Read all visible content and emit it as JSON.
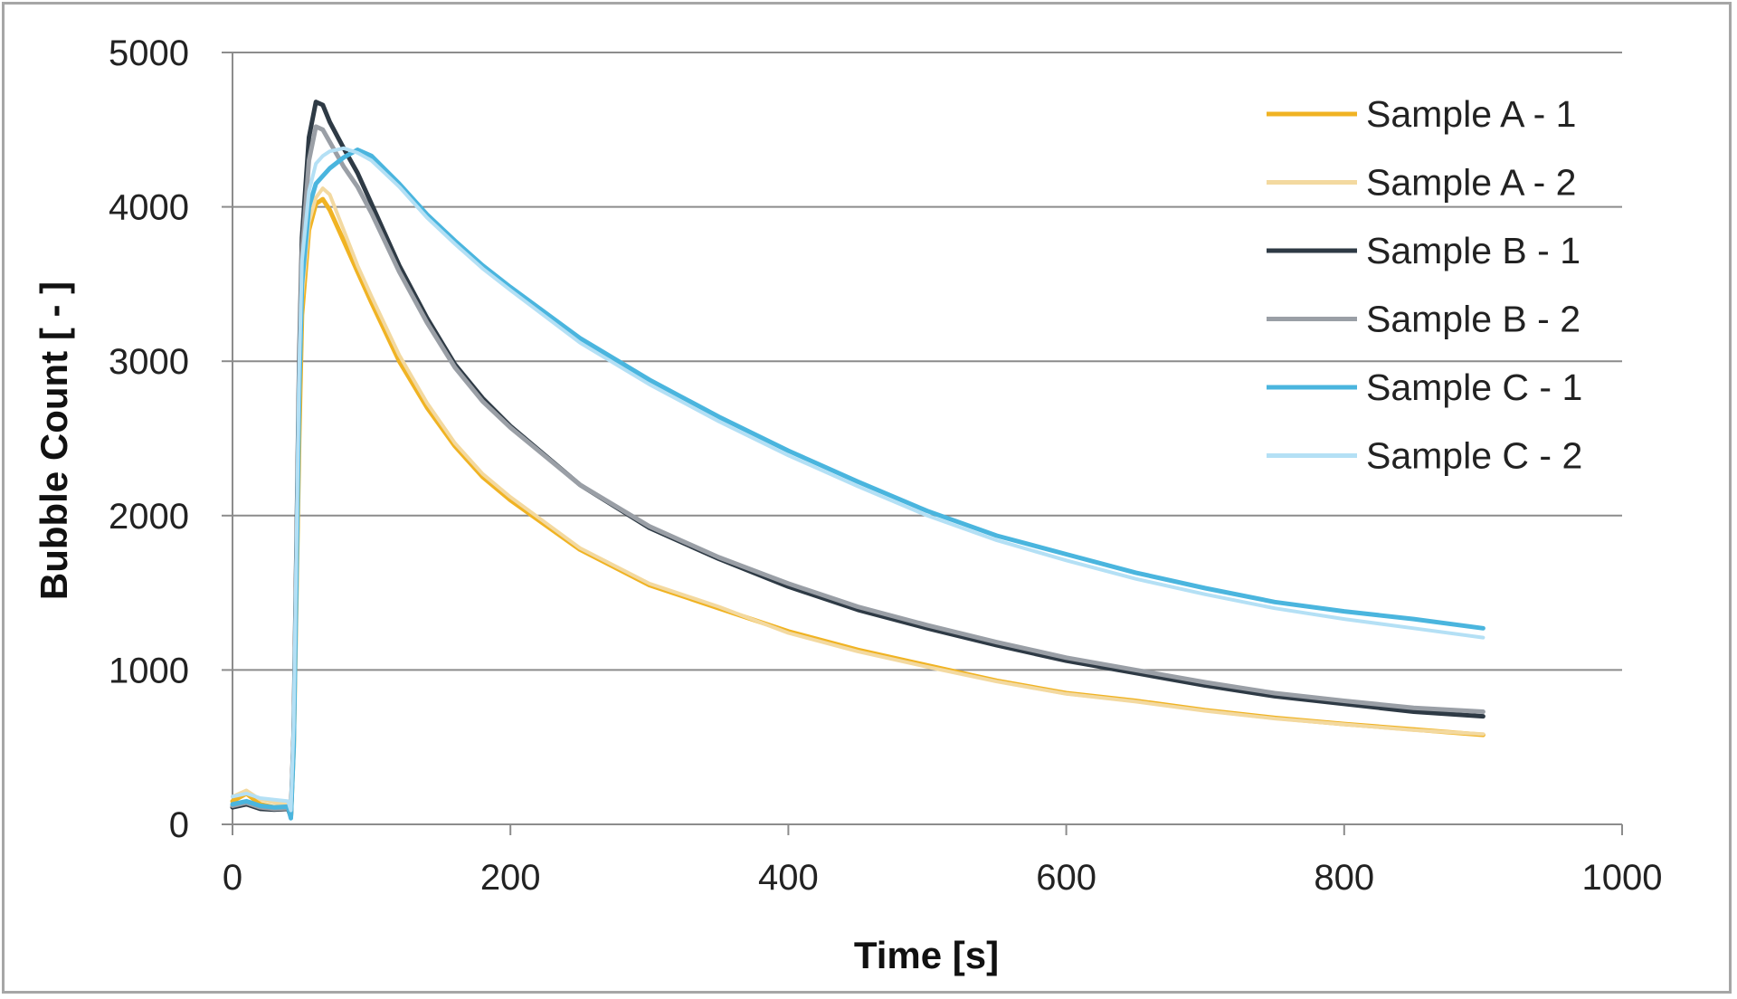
{
  "chart_data": {
    "type": "line",
    "title": "",
    "xlabel": "Time [s]",
    "ylabel": "Bubble Count [ - ]",
    "xlim": [
      0,
      1000
    ],
    "ylim": [
      0,
      5000
    ],
    "x_ticks": [
      0,
      200,
      400,
      600,
      800,
      1000
    ],
    "y_ticks": [
      0,
      1000,
      2000,
      3000,
      4000,
      5000
    ],
    "x_tick_labels": [
      "0",
      "200",
      "400",
      "600",
      "800",
      "1000"
    ],
    "y_tick_labels": [
      "0",
      "1000",
      "2000",
      "3000",
      "4000",
      "5000"
    ],
    "grid": "horizontal",
    "legend_position": "top-right",
    "series": [
      {
        "name": "Sample A - 1",
        "color": "#f0b323",
        "width": 5,
        "x": [
          0,
          10,
          20,
          30,
          40,
          42,
          44,
          46,
          48,
          50,
          55,
          60,
          65,
          70,
          80,
          90,
          100,
          120,
          140,
          160,
          180,
          200,
          250,
          300,
          350,
          400,
          450,
          500,
          550,
          600,
          650,
          700,
          750,
          800,
          850,
          900
        ],
        "y": [
          150,
          200,
          130,
          110,
          120,
          50,
          500,
          1500,
          2500,
          3300,
          3850,
          4020,
          4050,
          3980,
          3780,
          3580,
          3380,
          3000,
          2700,
          2450,
          2250,
          2100,
          1780,
          1550,
          1400,
          1250,
          1130,
          1030,
          930,
          850,
          800,
          740,
          690,
          650,
          615,
          580
        ]
      },
      {
        "name": "Sample A - 2",
        "color": "#f3d9a0",
        "width": 4,
        "x": [
          0,
          10,
          20,
          30,
          40,
          42,
          44,
          46,
          48,
          50,
          55,
          60,
          65,
          70,
          80,
          90,
          100,
          120,
          140,
          160,
          180,
          200,
          250,
          300,
          350,
          400,
          450,
          500,
          550,
          600,
          650,
          700,
          750,
          800,
          850,
          900
        ],
        "y": [
          180,
          220,
          160,
          140,
          130,
          80,
          600,
          1700,
          2700,
          3400,
          3900,
          4060,
          4120,
          4080,
          3850,
          3620,
          3420,
          3040,
          2730,
          2470,
          2270,
          2120,
          1790,
          1560,
          1410,
          1240,
          1120,
          1020,
          925,
          845,
          795,
          735,
          685,
          648,
          610,
          585
        ]
      },
      {
        "name": "Sample B - 1",
        "color": "#2e3a45",
        "width": 5,
        "x": [
          0,
          10,
          20,
          30,
          40,
          42,
          44,
          46,
          48,
          50,
          55,
          60,
          65,
          70,
          80,
          90,
          100,
          120,
          140,
          160,
          180,
          200,
          250,
          300,
          350,
          400,
          450,
          500,
          550,
          600,
          650,
          700,
          750,
          800,
          850,
          900
        ],
        "y": [
          110,
          130,
          100,
          95,
          100,
          50,
          600,
          1800,
          3000,
          3800,
          4450,
          4680,
          4660,
          4550,
          4380,
          4220,
          4020,
          3620,
          3280,
          2980,
          2760,
          2580,
          2200,
          1920,
          1720,
          1540,
          1390,
          1270,
          1160,
          1060,
          980,
          900,
          830,
          780,
          730,
          700
        ]
      },
      {
        "name": "Sample B - 2",
        "color": "#9a9fa6",
        "width": 5,
        "x": [
          0,
          10,
          20,
          30,
          40,
          42,
          44,
          46,
          48,
          50,
          55,
          60,
          65,
          70,
          80,
          90,
          100,
          120,
          140,
          160,
          180,
          200,
          250,
          300,
          350,
          400,
          450,
          500,
          550,
          600,
          650,
          700,
          750,
          800,
          850,
          900
        ],
        "y": [
          120,
          140,
          110,
          100,
          105,
          60,
          550,
          1700,
          2900,
          3700,
          4300,
          4520,
          4500,
          4420,
          4260,
          4130,
          3960,
          3580,
          3250,
          2960,
          2740,
          2570,
          2200,
          1930,
          1730,
          1560,
          1410,
          1290,
          1180,
          1080,
          1000,
          920,
          850,
          800,
          755,
          730
        ]
      },
      {
        "name": "Sample C - 1",
        "color": "#4ab5de",
        "width": 5,
        "x": [
          0,
          10,
          20,
          30,
          40,
          42,
          44,
          46,
          48,
          50,
          55,
          60,
          65,
          70,
          80,
          90,
          100,
          120,
          140,
          160,
          180,
          200,
          250,
          300,
          350,
          400,
          450,
          500,
          550,
          600,
          650,
          700,
          750,
          800,
          850,
          900
        ],
        "y": [
          130,
          150,
          120,
          110,
          115,
          40,
          500,
          1600,
          2800,
          3500,
          4000,
          4150,
          4200,
          4250,
          4320,
          4370,
          4330,
          4150,
          3950,
          3780,
          3620,
          3480,
          3150,
          2880,
          2640,
          2420,
          2220,
          2030,
          1870,
          1750,
          1630,
          1530,
          1440,
          1380,
          1330,
          1270
        ]
      },
      {
        "name": "Sample C - 2",
        "color": "#b4e0f5",
        "width": 4,
        "x": [
          0,
          10,
          20,
          30,
          40,
          42,
          44,
          46,
          48,
          50,
          55,
          60,
          65,
          70,
          80,
          90,
          100,
          120,
          140,
          160,
          180,
          200,
          250,
          300,
          350,
          400,
          450,
          500,
          550,
          600,
          650,
          700,
          750,
          800,
          850,
          900
        ],
        "y": [
          180,
          200,
          170,
          160,
          150,
          90,
          650,
          1800,
          2950,
          3650,
          4100,
          4280,
          4330,
          4360,
          4380,
          4350,
          4300,
          4130,
          3930,
          3760,
          3600,
          3460,
          3120,
          2850,
          2610,
          2390,
          2190,
          2000,
          1840,
          1710,
          1590,
          1490,
          1400,
          1330,
          1270,
          1210
        ]
      }
    ]
  }
}
